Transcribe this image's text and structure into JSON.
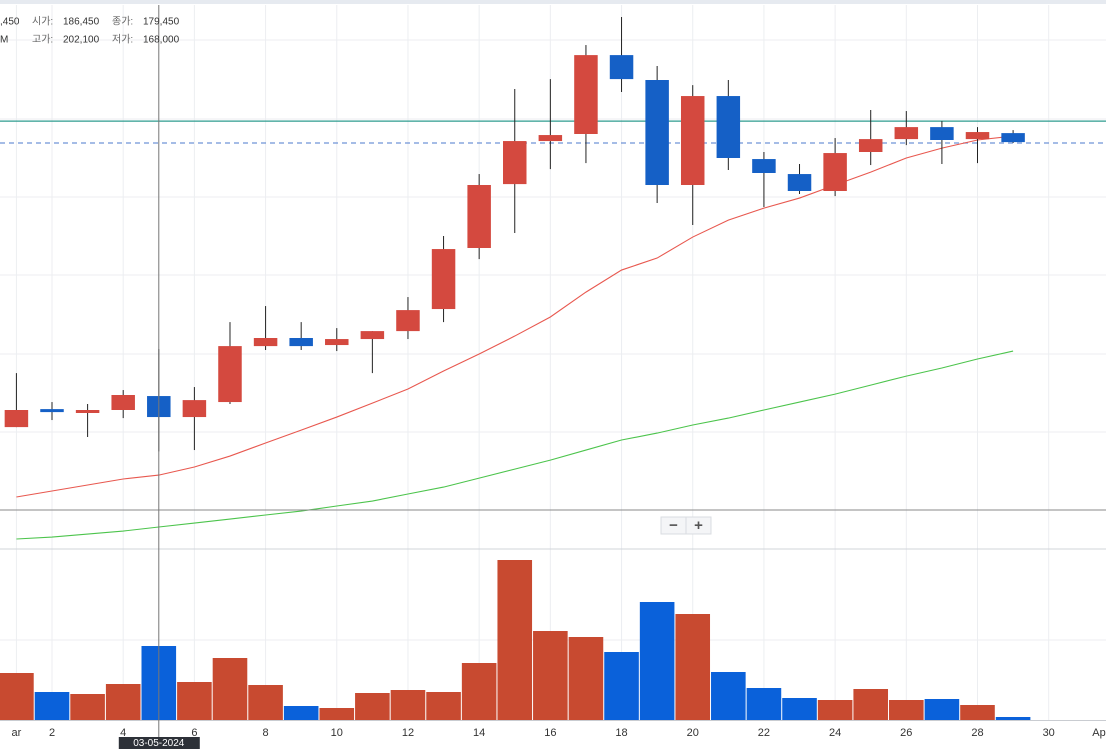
{
  "chart_data": {
    "type": "candlestick",
    "legend": {
      "rows": [
        {
          "lead": ",450",
          "items": [
            {
              "label": "시가:",
              "value": "186,450"
            },
            {
              "label": "종가:",
              "value": "179,450"
            }
          ]
        },
        {
          "lead": "M",
          "items": [
            {
              "label": "고가:",
              "value": "202,100"
            },
            {
              "label": "저가:",
              "value": "168,000"
            }
          ]
        }
      ]
    },
    "x": [
      1,
      2,
      3,
      4,
      5,
      6,
      7,
      8,
      9,
      10,
      11,
      12,
      13,
      14,
      15,
      16,
      17,
      18,
      19,
      20,
      21,
      22,
      23,
      24,
      25,
      26,
      27,
      28,
      29
    ],
    "open": [
      176100,
      182100,
      180800,
      181800,
      186450,
      179450,
      184450,
      203100,
      205800,
      203450,
      205450,
      208100,
      215450,
      235800,
      257100,
      271450,
      273800,
      300100,
      291800,
      256800,
      286450,
      265450,
      260450,
      254800,
      267800,
      272100,
      276100,
      272100,
      274100
    ],
    "high": [
      194100,
      184450,
      183800,
      188450,
      202100,
      189450,
      211100,
      216450,
      211100,
      209100,
      208100,
      219450,
      239800,
      260450,
      288800,
      292100,
      303450,
      312800,
      296450,
      290100,
      291800,
      267800,
      263800,
      272450,
      281800,
      281450,
      278100,
      276100,
      275100
    ],
    "low": [
      176100,
      178450,
      172800,
      179100,
      168000,
      168450,
      183800,
      201800,
      201800,
      201450,
      194100,
      205450,
      211100,
      232100,
      240800,
      262100,
      264100,
      287800,
      250800,
      243450,
      261800,
      249450,
      253800,
      253100,
      263450,
      270100,
      263800,
      264100,
      270800
    ],
    "close": [
      181800,
      181100,
      181800,
      186800,
      179450,
      185100,
      203100,
      205800,
      203100,
      205450,
      208100,
      215100,
      235450,
      256800,
      271450,
      273450,
      300100,
      292100,
      256800,
      286450,
      265800,
      260800,
      254800,
      267450,
      272100,
      276100,
      271800,
      274450,
      271100
    ],
    "up_color": "#d4493f",
    "down_color": "#1560c6",
    "moving_averages": [
      {
        "color": "#e8584f",
        "values": [
          152800,
          154800,
          156800,
          158800,
          160100,
          162800,
          166450,
          170800,
          175100,
          179450,
          184100,
          188800,
          194800,
          200450,
          206450,
          212800,
          221100,
          228450,
          232450,
          239450,
          245100,
          249100,
          252450,
          256800,
          261100,
          265800,
          269100,
          271800,
          273100
        ]
      },
      {
        "color": "#4cc44c",
        "values": [
          138800,
          139450,
          140450,
          141450,
          142800,
          144100,
          145450,
          146800,
          148100,
          149800,
          151450,
          153800,
          156100,
          159100,
          162100,
          165100,
          168450,
          171800,
          174100,
          176800,
          179100,
          181800,
          184450,
          187100,
          190100,
          193100,
          195800,
          198800,
          201450
        ]
      }
    ],
    "hlines": [
      {
        "value": 278100,
        "color": "#2e9c8f",
        "dashed": false
      },
      {
        "value": 270800,
        "color": "#6f93d6",
        "dashed": true
      }
    ],
    "ylim": [
      135800,
      316800
    ],
    "xlim": [
      0.539,
      31.61
    ],
    "xticks": [
      {
        "value": 1,
        "label": "ar"
      },
      2,
      4,
      6,
      8,
      10,
      12,
      14,
      16,
      18,
      20,
      22,
      24,
      26,
      28,
      30,
      {
        "value": 32,
        "label": "Ap"
      }
    ],
    "grid": true,
    "volume": {
      "values": [
        47,
        28,
        26,
        36,
        74,
        38,
        62,
        35,
        14,
        12,
        27,
        30,
        28,
        57,
        160,
        89,
        83,
        68,
        118,
        106,
        48,
        32,
        22,
        20,
        31,
        20,
        21,
        15,
        3
      ],
      "ylim": [
        0,
        170
      ],
      "up_color": "#c84a30",
      "down_color": "#0a61da"
    },
    "crosshair": {
      "x": 5,
      "label": "03-05-2024"
    },
    "zoom_buttons": [
      "−",
      "+"
    ]
  }
}
